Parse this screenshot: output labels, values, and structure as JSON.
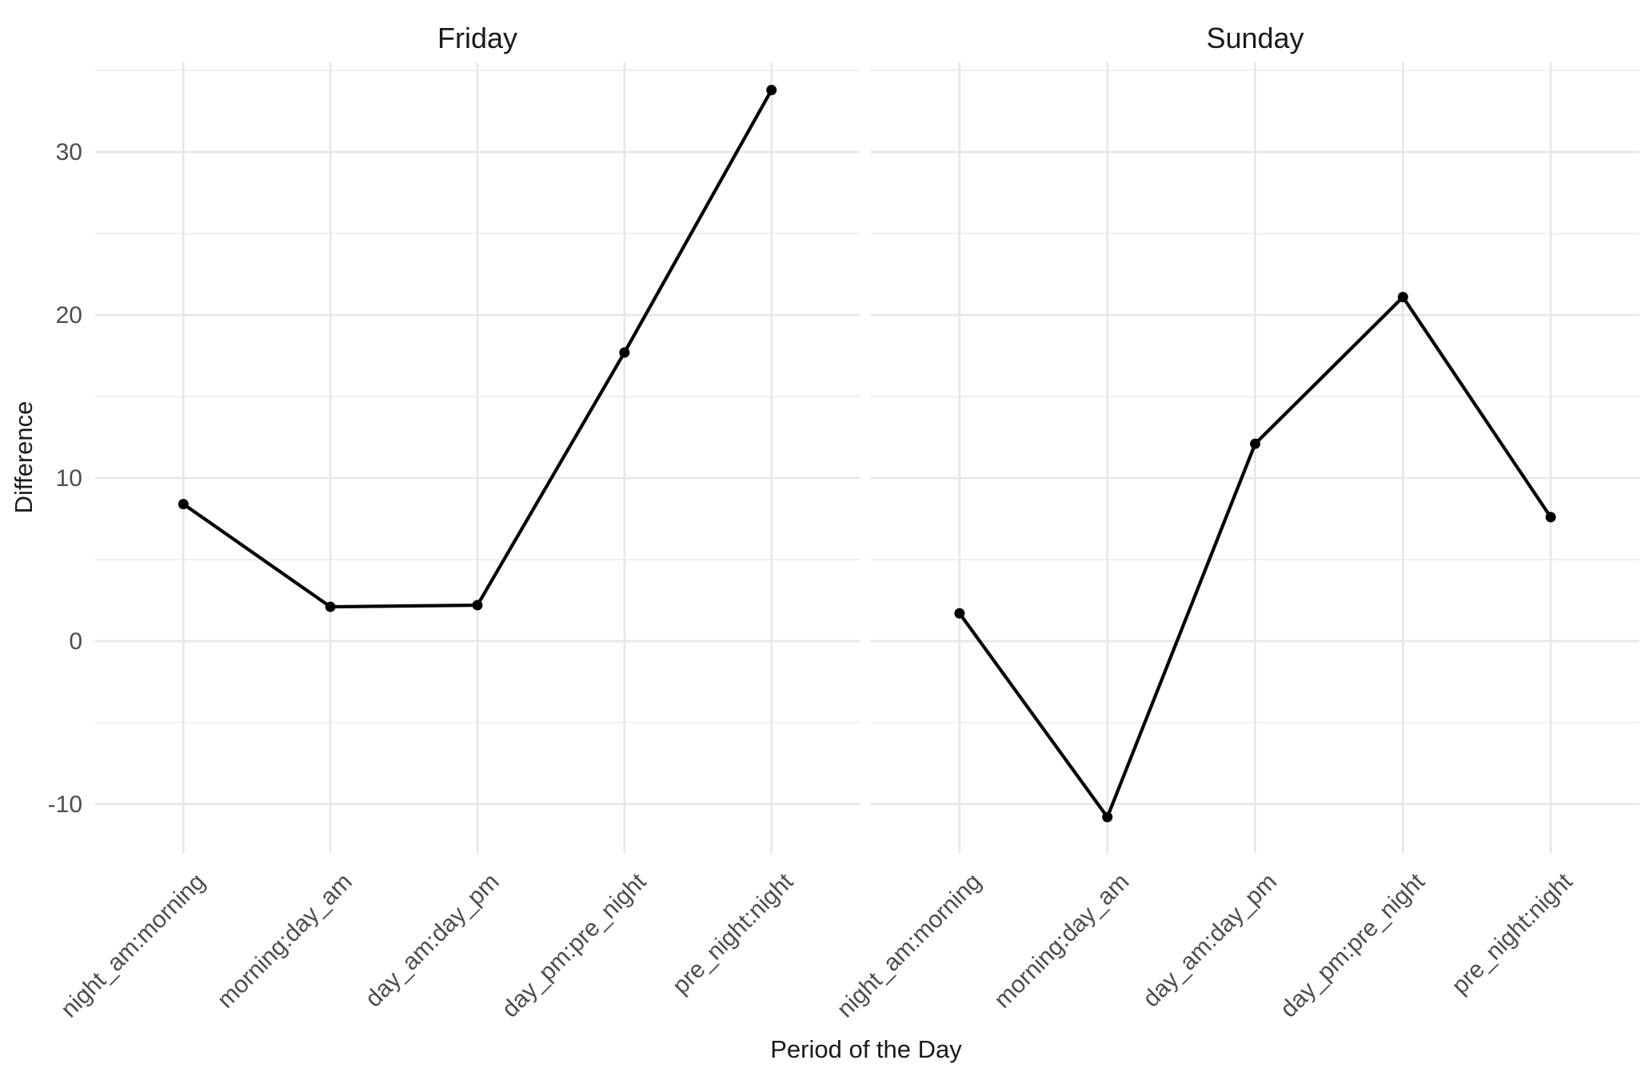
{
  "chart_data": {
    "type": "line",
    "xlabel": "Period of the Day",
    "ylabel": "Difference",
    "ylim": [
      -13,
      35.5
    ],
    "yticks": [
      -10,
      0,
      10,
      20,
      30
    ],
    "grid": true,
    "categories": [
      "night_am:morning",
      "morning:day_am",
      "day_am:day_pm",
      "day_pm:pre_night",
      "pre_night:night"
    ],
    "facets": [
      {
        "title": "Friday",
        "values": [
          8.4,
          2.1,
          2.2,
          17.7,
          33.8
        ]
      },
      {
        "title": "Sunday",
        "values": [
          1.7,
          -10.8,
          12.1,
          21.1,
          7.6
        ]
      }
    ]
  }
}
